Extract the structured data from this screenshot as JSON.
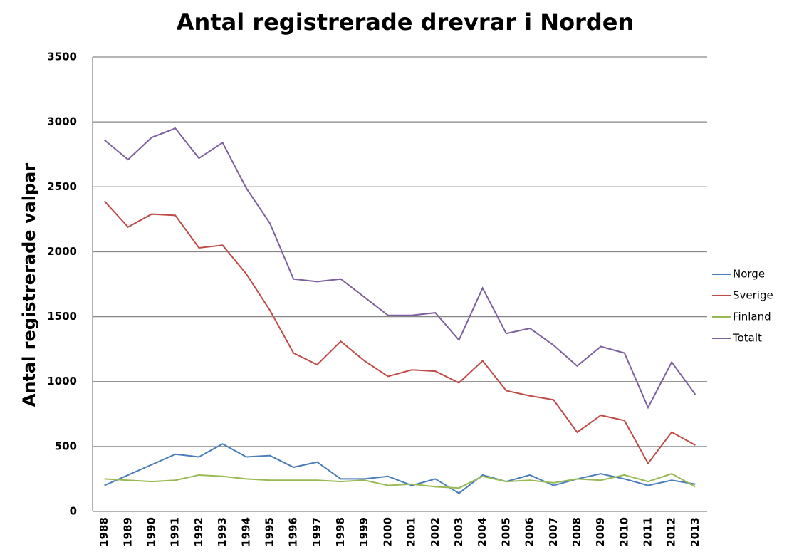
{
  "chart_data": {
    "type": "line",
    "title": "Antal registrerade drevrar i Norden",
    "y_label": "Antal registrerade valpar",
    "categories": [
      "1988",
      "1989",
      "1990",
      "1991",
      "1992",
      "1993",
      "1994",
      "1995",
      "1996",
      "1997",
      "1998",
      "1999",
      "2000",
      "2001",
      "2002",
      "2003",
      "2004",
      "2005",
      "2006",
      "2007",
      "2008",
      "2009",
      "2010",
      "2011",
      "2012",
      "2013"
    ],
    "series": [
      {
        "name": "Norge",
        "color": "#4a7ebb",
        "values": [
          200,
          280,
          360,
          440,
          420,
          520,
          420,
          430,
          340,
          380,
          250,
          250,
          270,
          200,
          250,
          140,
          280,
          230,
          280,
          200,
          250,
          290,
          250,
          200,
          240,
          210
        ]
      },
      {
        "name": "Sverige",
        "color": "#be4b48",
        "values": [
          2390,
          2190,
          2290,
          2280,
          2030,
          2050,
          1830,
          1550,
          1220,
          1130,
          1310,
          1160,
          1040,
          1090,
          1080,
          990,
          1160,
          930,
          890,
          860,
          610,
          740,
          700,
          370,
          610,
          510
        ]
      },
      {
        "name": "Finland",
        "color": "#98b954",
        "values": [
          250,
          240,
          230,
          240,
          280,
          270,
          250,
          240,
          240,
          240,
          230,
          240,
          200,
          210,
          190,
          180,
          270,
          230,
          240,
          220,
          250,
          240,
          280,
          230,
          290,
          190
        ]
      },
      {
        "name": "Totalt",
        "color": "#7d60a0",
        "values": [
          2860,
          2710,
          2880,
          2950,
          2720,
          2840,
          2490,
          2220,
          1790,
          1770,
          1790,
          1650,
          1510,
          1510,
          1530,
          1320,
          1720,
          1370,
          1410,
          1280,
          1120,
          1270,
          1220,
          800,
          1150,
          900
        ]
      }
    ],
    "ylim": [
      0,
      3500
    ],
    "yticks": [
      0,
      500,
      1000,
      1500,
      2000,
      2500,
      3000,
      3500
    ],
    "grid": true,
    "legend": "right"
  }
}
